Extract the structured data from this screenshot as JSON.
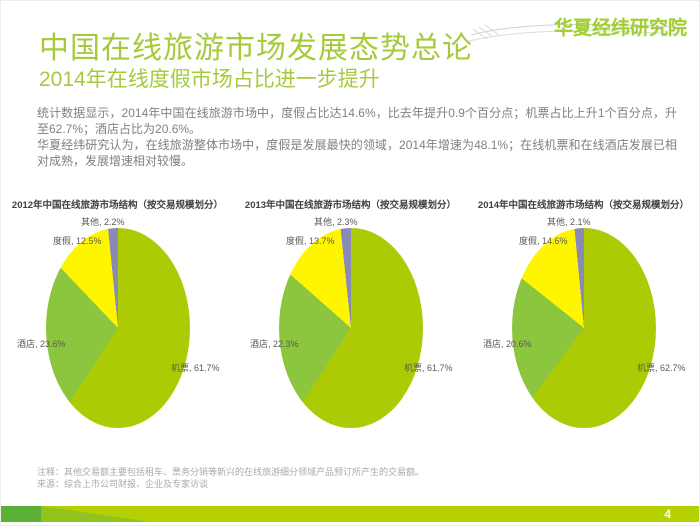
{
  "slide": {
    "logo": "华夏经纬研究院",
    "title": "中国在线旅游市场发展态势总论",
    "subtitle": "2014年在线度假市场占比进一步提升",
    "body": {
      "p1": "统计数据显示，2014年中国在线旅游市场中，度假占比达14.6%，比去年提升0.9个百分点；机票占比上升1个百分点，升至62.7%；酒店占比为20.6%。",
      "p2": "华夏经纬研究认为，在线旅游整体市场中，度假是发展最快的领域，2014年增速为48.1%；在线机票和在线酒店发展已相对成熟，发展增速相对较慢。"
    },
    "notes": {
      "note": "注释：其他交易额主要包括租车、票务分销等新兴的在线旅游细分领域产品预订所产生的交易额。",
      "source": "来源：综合上市公司财报、企业及专家访谈"
    },
    "page_number": "4"
  },
  "colors": {
    "accent_green": "#a5cb3c",
    "flight": "#adcb04",
    "hotel": "#8cc63f",
    "vacation": "#fff500",
    "other": "#8b89b8",
    "footer_bar": "#b6d102",
    "footer_dark": "#5ab033"
  },
  "chart_data": [
    {
      "type": "pie",
      "title": "2012年中国在线旅游市场结构（按交易规模划分）",
      "labels": [
        "机票",
        "酒店",
        "度假",
        "其他"
      ],
      "values": [
        61.7,
        23.6,
        12.5,
        2.2
      ],
      "colors": [
        "#adcb04",
        "#8cc63f",
        "#fff500",
        "#8b89b8"
      ],
      "legend_position": "data-labels",
      "start_angle": "top-clockwise"
    },
    {
      "type": "pie",
      "title": "2013年中国在线旅游市场结构（按交易规模划分）",
      "labels": [
        "机票",
        "酒店",
        "度假",
        "其他"
      ],
      "values": [
        61.7,
        22.3,
        13.7,
        2.3
      ],
      "colors": [
        "#adcb04",
        "#8cc63f",
        "#fff500",
        "#8b89b8"
      ],
      "legend_position": "data-labels",
      "start_angle": "top-clockwise"
    },
    {
      "type": "pie",
      "title": "2014年中国在线旅游市场结构（按交易规模划分）",
      "labels": [
        "机票",
        "酒店",
        "度假",
        "其他"
      ],
      "values": [
        62.7,
        20.6,
        14.6,
        2.1
      ],
      "colors": [
        "#adcb04",
        "#8cc63f",
        "#fff500",
        "#8b89b8"
      ],
      "legend_position": "data-labels",
      "start_angle": "top-clockwise"
    }
  ]
}
